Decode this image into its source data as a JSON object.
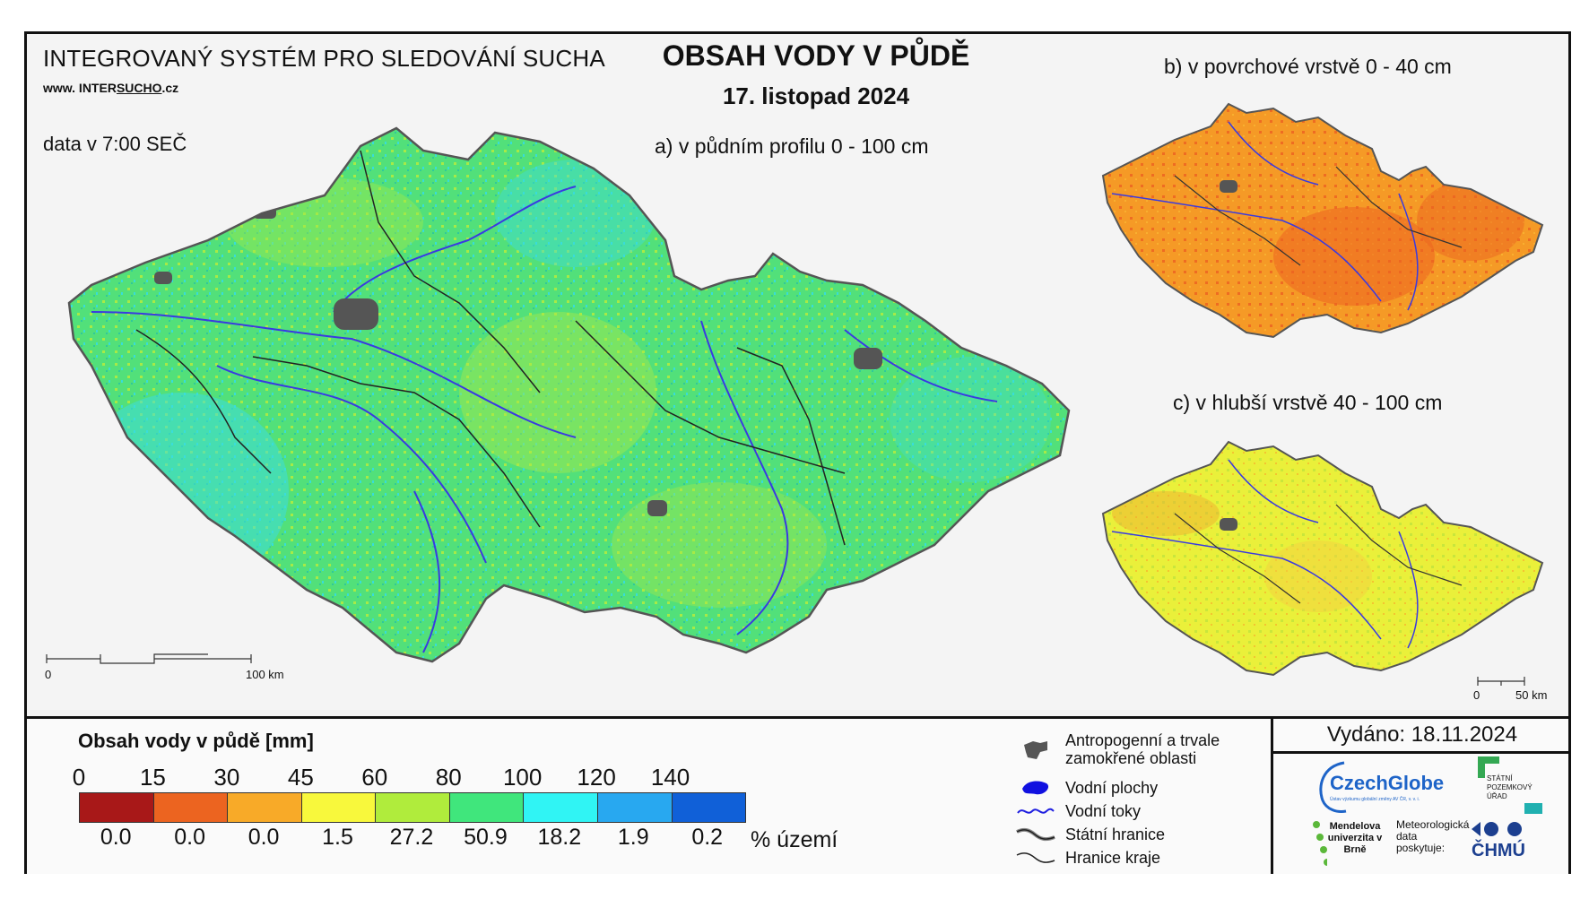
{
  "header": {
    "system_title": "INTEGROVANÝ SYSTÉM PRO SLEDOVÁNÍ SUCHA",
    "site_prefix": "www. INTER",
    "site_underlined": "SUCHO",
    "site_suffix": ".cz",
    "data_time": "data v 7:00 SEČ",
    "main_title": "OBSAH VODY V PŮDĚ",
    "date": "17. listopad 2024"
  },
  "maps": {
    "a_label": "a) v půdním profilu 0 - 100 cm",
    "b_label": "b) v povrchové vrstvě 0 - 40 cm",
    "c_label": "c) v hlubší vrstvě 40 - 100 cm",
    "scale_main": {
      "zero": "0",
      "end": "100 km"
    },
    "scale_small": {
      "zero": "0",
      "end": "50 km"
    }
  },
  "legend": {
    "title": "Obsah vody v půdě  [mm]",
    "ticks": [
      "0",
      "15",
      "30",
      "45",
      "60",
      "80",
      "100",
      "120",
      "140"
    ],
    "classes": [
      {
        "color": "#a81818",
        "pct": "0.0"
      },
      {
        "color": "#ec6420",
        "pct": "0.0"
      },
      {
        "color": "#f8aa28",
        "pct": "0.0"
      },
      {
        "color": "#f8f83c",
        "pct": "1.5"
      },
      {
        "color": "#b0ec3c",
        "pct": "27.2"
      },
      {
        "color": "#40e67c",
        "pct": "50.9"
      },
      {
        "color": "#30f4f4",
        "pct": "18.2"
      },
      {
        "color": "#28a8f0",
        "pct": "1.9"
      },
      {
        "color": "#1060d8",
        "pct": "0.2"
      }
    ],
    "pct_unit": "% území"
  },
  "symbols": {
    "anthropogenic": "Antropogenní a trvale zamokřené oblasti",
    "water_bodies": "Vodní plochy",
    "rivers": "Vodní toky",
    "state_border": "Státní hranice",
    "region_border": "Hranice kraje"
  },
  "issued": "Vydáno: 18.11.2024",
  "logos": {
    "czechglobe": "CzechGlobe",
    "czechglobe_sub": "Ústav výzkumu globální změny AV ČR, v. v. i.",
    "spu": "STÁTNÍ POZEMKOVÝ ÚŘAD",
    "mendelu": "Mendelova univerzita v Brně",
    "meteo_note": "Meteorologická data poskytuje:",
    "chmu": "ČHMÚ"
  }
}
